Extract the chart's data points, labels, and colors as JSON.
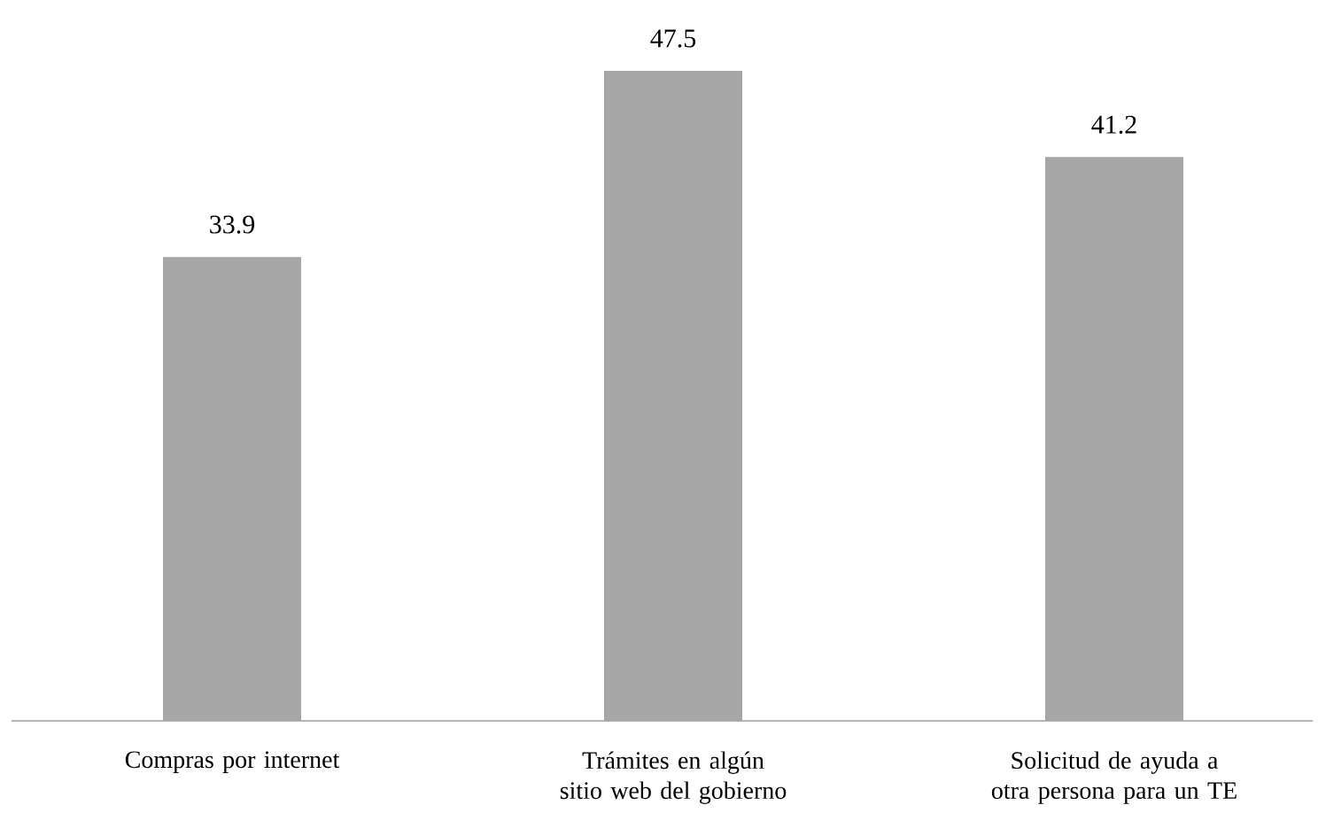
{
  "chart_data": {
    "type": "bar",
    "categories": [
      "Compras por internet",
      "Trámites en algún sitio web del gobierno",
      "Solicitud de ayuda a otra persona para un TE"
    ],
    "values": [
      33.9,
      47.5,
      41.2
    ],
    "color": "#a6a6a6",
    "data_labels": true
  }
}
